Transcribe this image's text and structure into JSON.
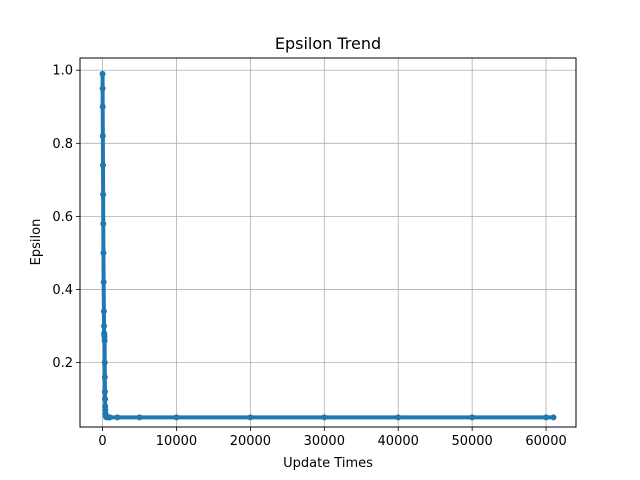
{
  "chart_data": {
    "type": "line",
    "title": "Epsilon Trend",
    "xlabel": "Update Times",
    "ylabel": "Epsilon",
    "xlim": [
      -3050,
      64050
    ],
    "ylim": [
      0.0235,
      1.0335
    ],
    "xticks": [
      0,
      10000,
      20000,
      30000,
      40000,
      50000,
      60000
    ],
    "yticks": [
      0.2,
      0.4,
      0.6,
      0.8,
      1.0
    ],
    "xtick_labels": [
      "0",
      "10000",
      "20000",
      "30000",
      "40000",
      "50000",
      "60000"
    ],
    "ytick_labels": [
      "0.2",
      "0.4",
      "0.6",
      "0.8",
      "1.0"
    ],
    "grid": true,
    "marker": "circle",
    "color": "#1f77b4",
    "series": [
      {
        "x": [
          0,
          10,
          20,
          40,
          60,
          80,
          100,
          120,
          150,
          180,
          200,
          220,
          240,
          260,
          280,
          300,
          310,
          320,
          340,
          360,
          380,
          400,
          420,
          450,
          500,
          600,
          800,
          1000,
          2000,
          5000,
          10000,
          20000,
          30000,
          40000,
          50000,
          60000,
          61000
        ],
        "y": [
          0.99,
          0.95,
          0.9,
          0.82,
          0.74,
          0.66,
          0.58,
          0.5,
          0.42,
          0.34,
          0.3,
          0.28,
          0.275,
          0.27,
          0.26,
          0.2,
          0.16,
          0.12,
          0.1,
          0.08,
          0.07,
          0.06,
          0.055,
          0.052,
          0.051,
          0.05,
          0.05,
          0.05,
          0.05,
          0.05,
          0.05,
          0.05,
          0.05,
          0.05,
          0.05,
          0.05,
          0.05
        ]
      }
    ]
  }
}
